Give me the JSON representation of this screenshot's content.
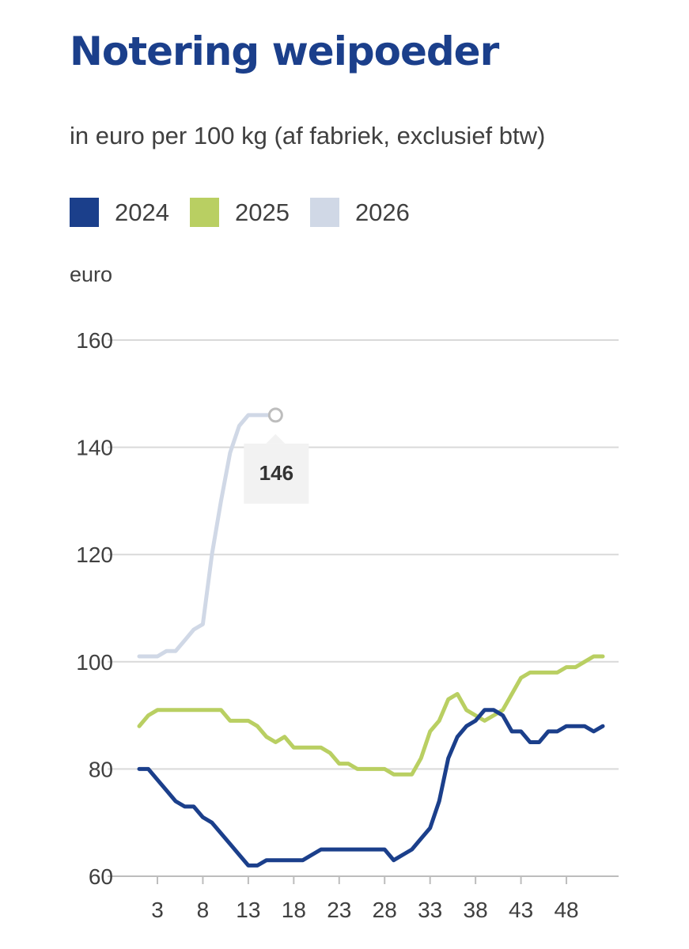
{
  "header": {
    "title": "Notering weipoeder",
    "subtitle": "in euro per 100 kg (af fabriek, exclusief btw)"
  },
  "chart_data": {
    "type": "line",
    "title": "Notering weipoeder",
    "subtitle": "in euro per 100 kg (af fabriek, exclusief btw)",
    "ylabel": "euro",
    "xlabel": "",
    "ylim": [
      60,
      160
    ],
    "xlim": [
      1,
      52
    ],
    "yticks": [
      60,
      80,
      100,
      120,
      140,
      160
    ],
    "xticks": [
      3,
      8,
      13,
      18,
      23,
      28,
      33,
      38,
      43,
      48
    ],
    "grid": true,
    "legend_position": "top-left",
    "series": [
      {
        "name": "2024",
        "color": "#1b3f8b",
        "x": [
          1,
          2,
          3,
          4,
          5,
          6,
          7,
          8,
          9,
          10,
          11,
          12,
          13,
          14,
          15,
          16,
          17,
          18,
          19,
          20,
          21,
          22,
          23,
          24,
          25,
          26,
          27,
          28,
          29,
          30,
          31,
          32,
          33,
          34,
          35,
          36,
          37,
          38,
          39,
          40,
          41,
          42,
          43,
          44,
          45,
          46,
          47,
          48,
          49,
          50,
          51,
          52
        ],
        "values": [
          80,
          80,
          78,
          76,
          74,
          73,
          73,
          71,
          70,
          68,
          66,
          64,
          62,
          62,
          63,
          63,
          63,
          63,
          63,
          64,
          65,
          65,
          65,
          65,
          65,
          65,
          65,
          65,
          63,
          64,
          65,
          67,
          69,
          74,
          82,
          86,
          88,
          89,
          91,
          91,
          90,
          87,
          87,
          85,
          85,
          87,
          87,
          88,
          88,
          88,
          87,
          88
        ]
      },
      {
        "name": "2025",
        "color": "#b9cf62",
        "x": [
          1,
          2,
          3,
          4,
          5,
          6,
          7,
          8,
          9,
          10,
          11,
          12,
          13,
          14,
          15,
          16,
          17,
          18,
          19,
          20,
          21,
          22,
          23,
          24,
          25,
          26,
          27,
          28,
          29,
          30,
          31,
          32,
          33,
          34,
          35,
          36,
          37,
          38,
          39,
          40,
          41,
          42,
          43,
          44,
          45,
          46,
          47,
          48,
          49,
          50,
          51,
          52
        ],
        "values": [
          88,
          90,
          91,
          91,
          91,
          91,
          91,
          91,
          91,
          91,
          89,
          89,
          89,
          88,
          86,
          85,
          86,
          84,
          84,
          84,
          84,
          83,
          81,
          81,
          80,
          80,
          80,
          80,
          79,
          79,
          79,
          82,
          87,
          89,
          93,
          94,
          91,
          90,
          89,
          90,
          91,
          94,
          97,
          98,
          98,
          98,
          98,
          99,
          99,
          100,
          101,
          101
        ]
      },
      {
        "name": "2026",
        "color": "#d0d8e6",
        "x": [
          1,
          2,
          3,
          4,
          5,
          6,
          7,
          8,
          9,
          10,
          11,
          12,
          13,
          14,
          15,
          16
        ],
        "values": [
          101,
          101,
          101,
          102,
          102,
          104,
          106,
          107,
          120,
          130,
          139,
          144,
          146,
          146,
          146,
          146
        ]
      }
    ],
    "annotations": [
      {
        "series": "2026",
        "x": 16,
        "y": 146,
        "label": "146"
      }
    ]
  }
}
